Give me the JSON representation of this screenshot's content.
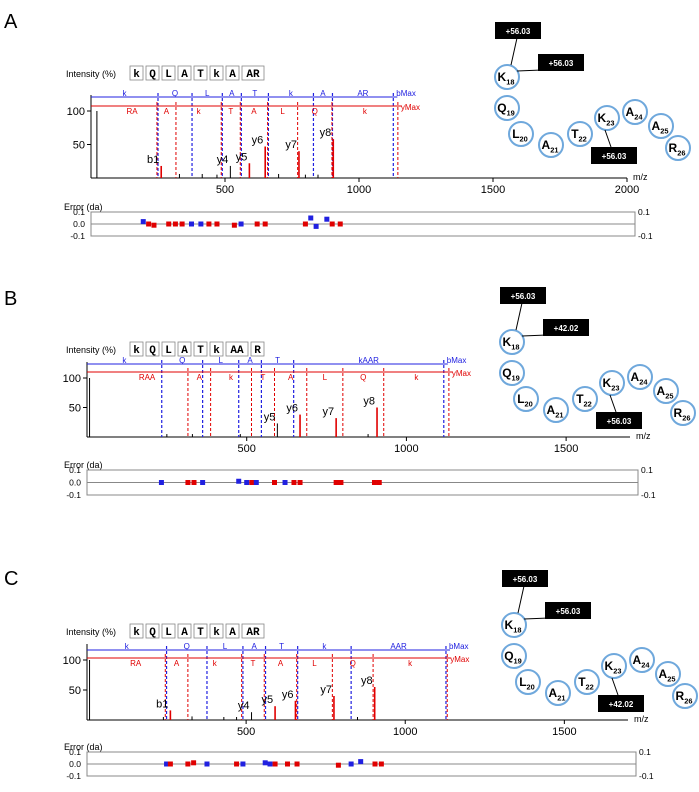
{
  "chart_data": [
    {
      "type": "bar",
      "panel": "A",
      "ylabel": "Intensity (%)",
      "xlabel": "m/z",
      "xlim": [
        0,
        2000
      ],
      "ylim": [
        0,
        110
      ],
      "x_ticks": [
        500,
        1000,
        1500,
        2000
      ],
      "y_ticks": [
        50,
        100
      ],
      "sequence": [
        "k",
        "Q",
        "L",
        "A",
        "T",
        "k",
        "A",
        "AR"
      ],
      "b_series": {
        "name": "bMax",
        "labels": [
          "k",
          "Q",
          "L",
          "A",
          "T",
          "k",
          "A",
          "AR"
        ],
        "x": [
          250,
          377,
          490,
          561,
          662,
          830,
          901,
          1128
        ]
      },
      "y_series": {
        "name": "yMax",
        "labels": [
          "RA",
          "A",
          "k",
          "T",
          "A",
          "L",
          "Q",
          "k"
        ],
        "x": [
          246,
          317,
          486,
          557,
          659,
          771,
          899,
          1145
        ]
      },
      "peaks": [
        {
          "x": 22,
          "y": 100,
          "color": "#000000"
        },
        {
          "x": 262,
          "y": 18,
          "color": "#e00000",
          "label": "b1"
        },
        {
          "x": 330,
          "y": 6,
          "color": "#000000"
        },
        {
          "x": 415,
          "y": 6,
          "color": "#000000"
        },
        {
          "x": 470,
          "y": 5,
          "color": "#000000"
        },
        {
          "x": 520,
          "y": 18,
          "color": "#000000",
          "label": "y4"
        },
        {
          "x": 591,
          "y": 22,
          "color": "#e00000",
          "label": "y5"
        },
        {
          "x": 650,
          "y": 47,
          "color": "#e00000",
          "label": "y6"
        },
        {
          "x": 700,
          "y": 6,
          "color": "#000000"
        },
        {
          "x": 776,
          "y": 40,
          "color": "#e00000",
          "label": "y7"
        },
        {
          "x": 800,
          "y": 5,
          "color": "#000000"
        },
        {
          "x": 847,
          "y": 5,
          "color": "#000000"
        },
        {
          "x": 904,
          "y": 58,
          "color": "#e00000",
          "label": "y8"
        }
      ],
      "error_plot": {
        "label": "Error (da)",
        "y_ticks_left": [
          "0.1",
          "0.0",
          "-0.1"
        ],
        "y_ticks_right": [
          "0.1",
          "-0.1"
        ],
        "points": [
          {
            "x": 195,
            "e": 0.02,
            "color": "#2020e0"
          },
          {
            "x": 215,
            "e": 0.0,
            "color": "#e00000"
          },
          {
            "x": 235,
            "e": -0.01,
            "color": "#e00000"
          },
          {
            "x": 290,
            "e": 0.0,
            "color": "#e00000"
          },
          {
            "x": 315,
            "e": 0.0,
            "color": "#e00000"
          },
          {
            "x": 340,
            "e": 0.0,
            "color": "#e00000"
          },
          {
            "x": 375,
            "e": 0.0,
            "color": "#2020e0"
          },
          {
            "x": 410,
            "e": 0.0,
            "color": "#2020e0"
          },
          {
            "x": 440,
            "e": 0.0,
            "color": "#e00000"
          },
          {
            "x": 470,
            "e": 0.0,
            "color": "#e00000"
          },
          {
            "x": 535,
            "e": -0.01,
            "color": "#e00000"
          },
          {
            "x": 560,
            "e": 0.0,
            "color": "#2020e0"
          },
          {
            "x": 620,
            "e": 0.0,
            "color": "#e00000"
          },
          {
            "x": 650,
            "e": 0.0,
            "color": "#e00000"
          },
          {
            "x": 800,
            "e": 0.0,
            "color": "#e00000"
          },
          {
            "x": 820,
            "e": 0.05,
            "color": "#2020e0"
          },
          {
            "x": 840,
            "e": -0.02,
            "color": "#2020e0"
          },
          {
            "x": 880,
            "e": 0.04,
            "color": "#2020e0"
          },
          {
            "x": 900,
            "e": 0.0,
            "color": "#e00000"
          },
          {
            "x": 930,
            "e": 0.0,
            "color": "#e00000"
          }
        ]
      },
      "modification_diagram": {
        "residues": [
          "K18",
          "Q19",
          "L20",
          "A21",
          "T22",
          "K23",
          "A24",
          "A25",
          "R26"
        ],
        "modifications": [
          {
            "residue": "K18",
            "labels": [
              "+56.03",
              "+56.03"
            ]
          },
          {
            "residue": "K23",
            "labels": [
              "+56.03"
            ]
          }
        ]
      }
    },
    {
      "type": "bar",
      "panel": "B",
      "ylabel": "Intensity (%)",
      "xlabel": "m/z",
      "xlim": [
        0,
        1700
      ],
      "ylim": [
        0,
        110
      ],
      "x_ticks": [
        500,
        1000,
        1500
      ],
      "y_ticks": [
        50,
        100
      ],
      "sequence": [
        "k",
        "Q",
        "L",
        "A",
        "T",
        "k",
        "AA",
        "R"
      ],
      "b_series": {
        "name": "bMax",
        "labels": [
          "k",
          "Q",
          "L",
          "A",
          "T",
          "kAAR"
        ],
        "x": [
          234,
          362,
          475,
          546,
          647,
          1117
        ]
      },
      "y_series": {
        "name": "yMax",
        "labels": [
          "RAA",
          "A",
          "k",
          "T",
          "A",
          "L",
          "Q",
          "k"
        ],
        "x": [
          316,
          387,
          515,
          587,
          688,
          801,
          929,
          1133
        ]
      },
      "peaks": [
        {
          "x": 8,
          "y": 100,
          "color": "#000000"
        },
        {
          "x": 250,
          "y": 5,
          "color": "#000000"
        },
        {
          "x": 330,
          "y": 5,
          "color": "#000000"
        },
        {
          "x": 480,
          "y": 5,
          "color": "#000000"
        },
        {
          "x": 596,
          "y": 23,
          "color": "#000000",
          "label": "y5"
        },
        {
          "x": 667,
          "y": 38,
          "color": "#e00000",
          "label": "y6"
        },
        {
          "x": 780,
          "y": 32,
          "color": "#e00000",
          "label": "y7"
        },
        {
          "x": 880,
          "y": 5,
          "color": "#000000"
        },
        {
          "x": 908,
          "y": 50,
          "color": "#e00000",
          "label": "y8"
        }
      ],
      "error_plot": {
        "label": "Error (da)",
        "y_ticks_left": [
          "0.1",
          "0.0",
          "-0.1"
        ],
        "y_ticks_right": [
          "0.1",
          "-0.1"
        ],
        "points": [
          {
            "x": 233,
            "e": 0.0,
            "color": "#2020e0"
          },
          {
            "x": 316,
            "e": 0.0,
            "color": "#e00000"
          },
          {
            "x": 335,
            "e": 0.0,
            "color": "#e00000"
          },
          {
            "x": 362,
            "e": 0.0,
            "color": "#2020e0"
          },
          {
            "x": 475,
            "e": 0.01,
            "color": "#2020e0"
          },
          {
            "x": 500,
            "e": 0.0,
            "color": "#2020e0"
          },
          {
            "x": 516,
            "e": 0.0,
            "color": "#e00000"
          },
          {
            "x": 530,
            "e": 0.0,
            "color": "#2020e0"
          },
          {
            "x": 587,
            "e": 0.0,
            "color": "#e00000"
          },
          {
            "x": 620,
            "e": 0.0,
            "color": "#2020e0"
          },
          {
            "x": 648,
            "e": 0.0,
            "color": "#e00000"
          },
          {
            "x": 667,
            "e": 0.0,
            "color": "#e00000"
          },
          {
            "x": 780,
            "e": 0.0,
            "color": "#e00000"
          },
          {
            "x": 795,
            "e": 0.0,
            "color": "#e00000"
          },
          {
            "x": 900,
            "e": 0.0,
            "color": "#e00000"
          },
          {
            "x": 915,
            "e": 0.0,
            "color": "#e00000"
          }
        ]
      },
      "modification_diagram": {
        "residues": [
          "K18",
          "Q19",
          "L20",
          "A21",
          "T22",
          "K23",
          "A24",
          "A25",
          "R26"
        ],
        "modifications": [
          {
            "residue": "K18",
            "labels": [
              "+56.03",
              "+42.02"
            ]
          },
          {
            "residue": "K23",
            "labels": [
              "+56.03"
            ]
          }
        ]
      }
    },
    {
      "type": "bar",
      "panel": "C",
      "ylabel": "Intensity (%)",
      "xlabel": "m/z",
      "xlim": [
        0,
        1700
      ],
      "ylim": [
        0,
        110
      ],
      "x_ticks": [
        500,
        1000,
        1500
      ],
      "y_ticks": [
        50,
        100
      ],
      "sequence": [
        "k",
        "Q",
        "L",
        "A",
        "T",
        "k",
        "A",
        "AR"
      ],
      "b_series": {
        "name": "bMax",
        "labels": [
          "k",
          "Q",
          "L",
          "A",
          "T",
          "k",
          "AAR"
        ],
        "x": [
          250,
          377,
          490,
          561,
          662,
          830,
          1128
        ]
      },
      "y_series": {
        "name": "yMax",
        "labels": [
          "RA",
          "A",
          "k",
          "T",
          "A",
          "L",
          "Q",
          "k"
        ],
        "x": [
          246,
          317,
          486,
          557,
          659,
          771,
          899,
          1132
        ]
      },
      "peaks": [
        {
          "x": 8,
          "y": 100,
          "color": "#000000"
        },
        {
          "x": 240,
          "y": 5,
          "color": "#000000"
        },
        {
          "x": 262,
          "y": 16,
          "color": "#e00000",
          "label": "b1"
        },
        {
          "x": 330,
          "y": 6,
          "color": "#000000"
        },
        {
          "x": 430,
          "y": 5,
          "color": "#000000"
        },
        {
          "x": 470,
          "y": 5,
          "color": "#000000"
        },
        {
          "x": 517,
          "y": 13,
          "color": "#000000",
          "label": "y4"
        },
        {
          "x": 591,
          "y": 23,
          "color": "#e00000",
          "label": "y5"
        },
        {
          "x": 655,
          "y": 32,
          "color": "#e00000",
          "label": "y6"
        },
        {
          "x": 776,
          "y": 40,
          "color": "#e00000",
          "label": "y7"
        },
        {
          "x": 850,
          "y": 5,
          "color": "#000000"
        },
        {
          "x": 904,
          "y": 55,
          "color": "#e00000",
          "label": "y8"
        }
      ],
      "error_plot": {
        "label": "Error (da)",
        "y_ticks_left": [
          "0.1",
          "0.0",
          "-0.1"
        ],
        "y_ticks_right": [
          "0.1",
          "-0.1"
        ],
        "points": [
          {
            "x": 250,
            "e": 0.0,
            "color": "#2020e0"
          },
          {
            "x": 262,
            "e": 0.0,
            "color": "#e00000"
          },
          {
            "x": 317,
            "e": 0.0,
            "color": "#e00000"
          },
          {
            "x": 335,
            "e": 0.01,
            "color": "#e00000"
          },
          {
            "x": 377,
            "e": 0.0,
            "color": "#2020e0"
          },
          {
            "x": 470,
            "e": 0.0,
            "color": "#e00000"
          },
          {
            "x": 490,
            "e": 0.0,
            "color": "#2020e0"
          },
          {
            "x": 560,
            "e": 0.01,
            "color": "#2020e0"
          },
          {
            "x": 575,
            "e": 0.0,
            "color": "#2020e0"
          },
          {
            "x": 591,
            "e": 0.0,
            "color": "#e00000"
          },
          {
            "x": 630,
            "e": 0.0,
            "color": "#e00000"
          },
          {
            "x": 660,
            "e": 0.0,
            "color": "#e00000"
          },
          {
            "x": 790,
            "e": -0.01,
            "color": "#e00000"
          },
          {
            "x": 830,
            "e": 0.0,
            "color": "#2020e0"
          },
          {
            "x": 860,
            "e": 0.02,
            "color": "#2020e0"
          },
          {
            "x": 905,
            "e": 0.0,
            "color": "#e00000"
          },
          {
            "x": 925,
            "e": 0.0,
            "color": "#e00000"
          }
        ]
      },
      "modification_diagram": {
        "residues": [
          "K18",
          "Q19",
          "L20",
          "A21",
          "T22",
          "K23",
          "A24",
          "A25",
          "R26"
        ],
        "modifications": [
          {
            "residue": "K18",
            "labels": [
              "+56.03",
              "+56.03"
            ]
          },
          {
            "residue": "K23",
            "labels": [
              "+42.02"
            ]
          }
        ]
      }
    }
  ],
  "colors": {
    "b_ion": "#2020e0",
    "y_ion": "#e00000",
    "residue_stroke": "#6fa8dc",
    "peak": "#000000"
  }
}
